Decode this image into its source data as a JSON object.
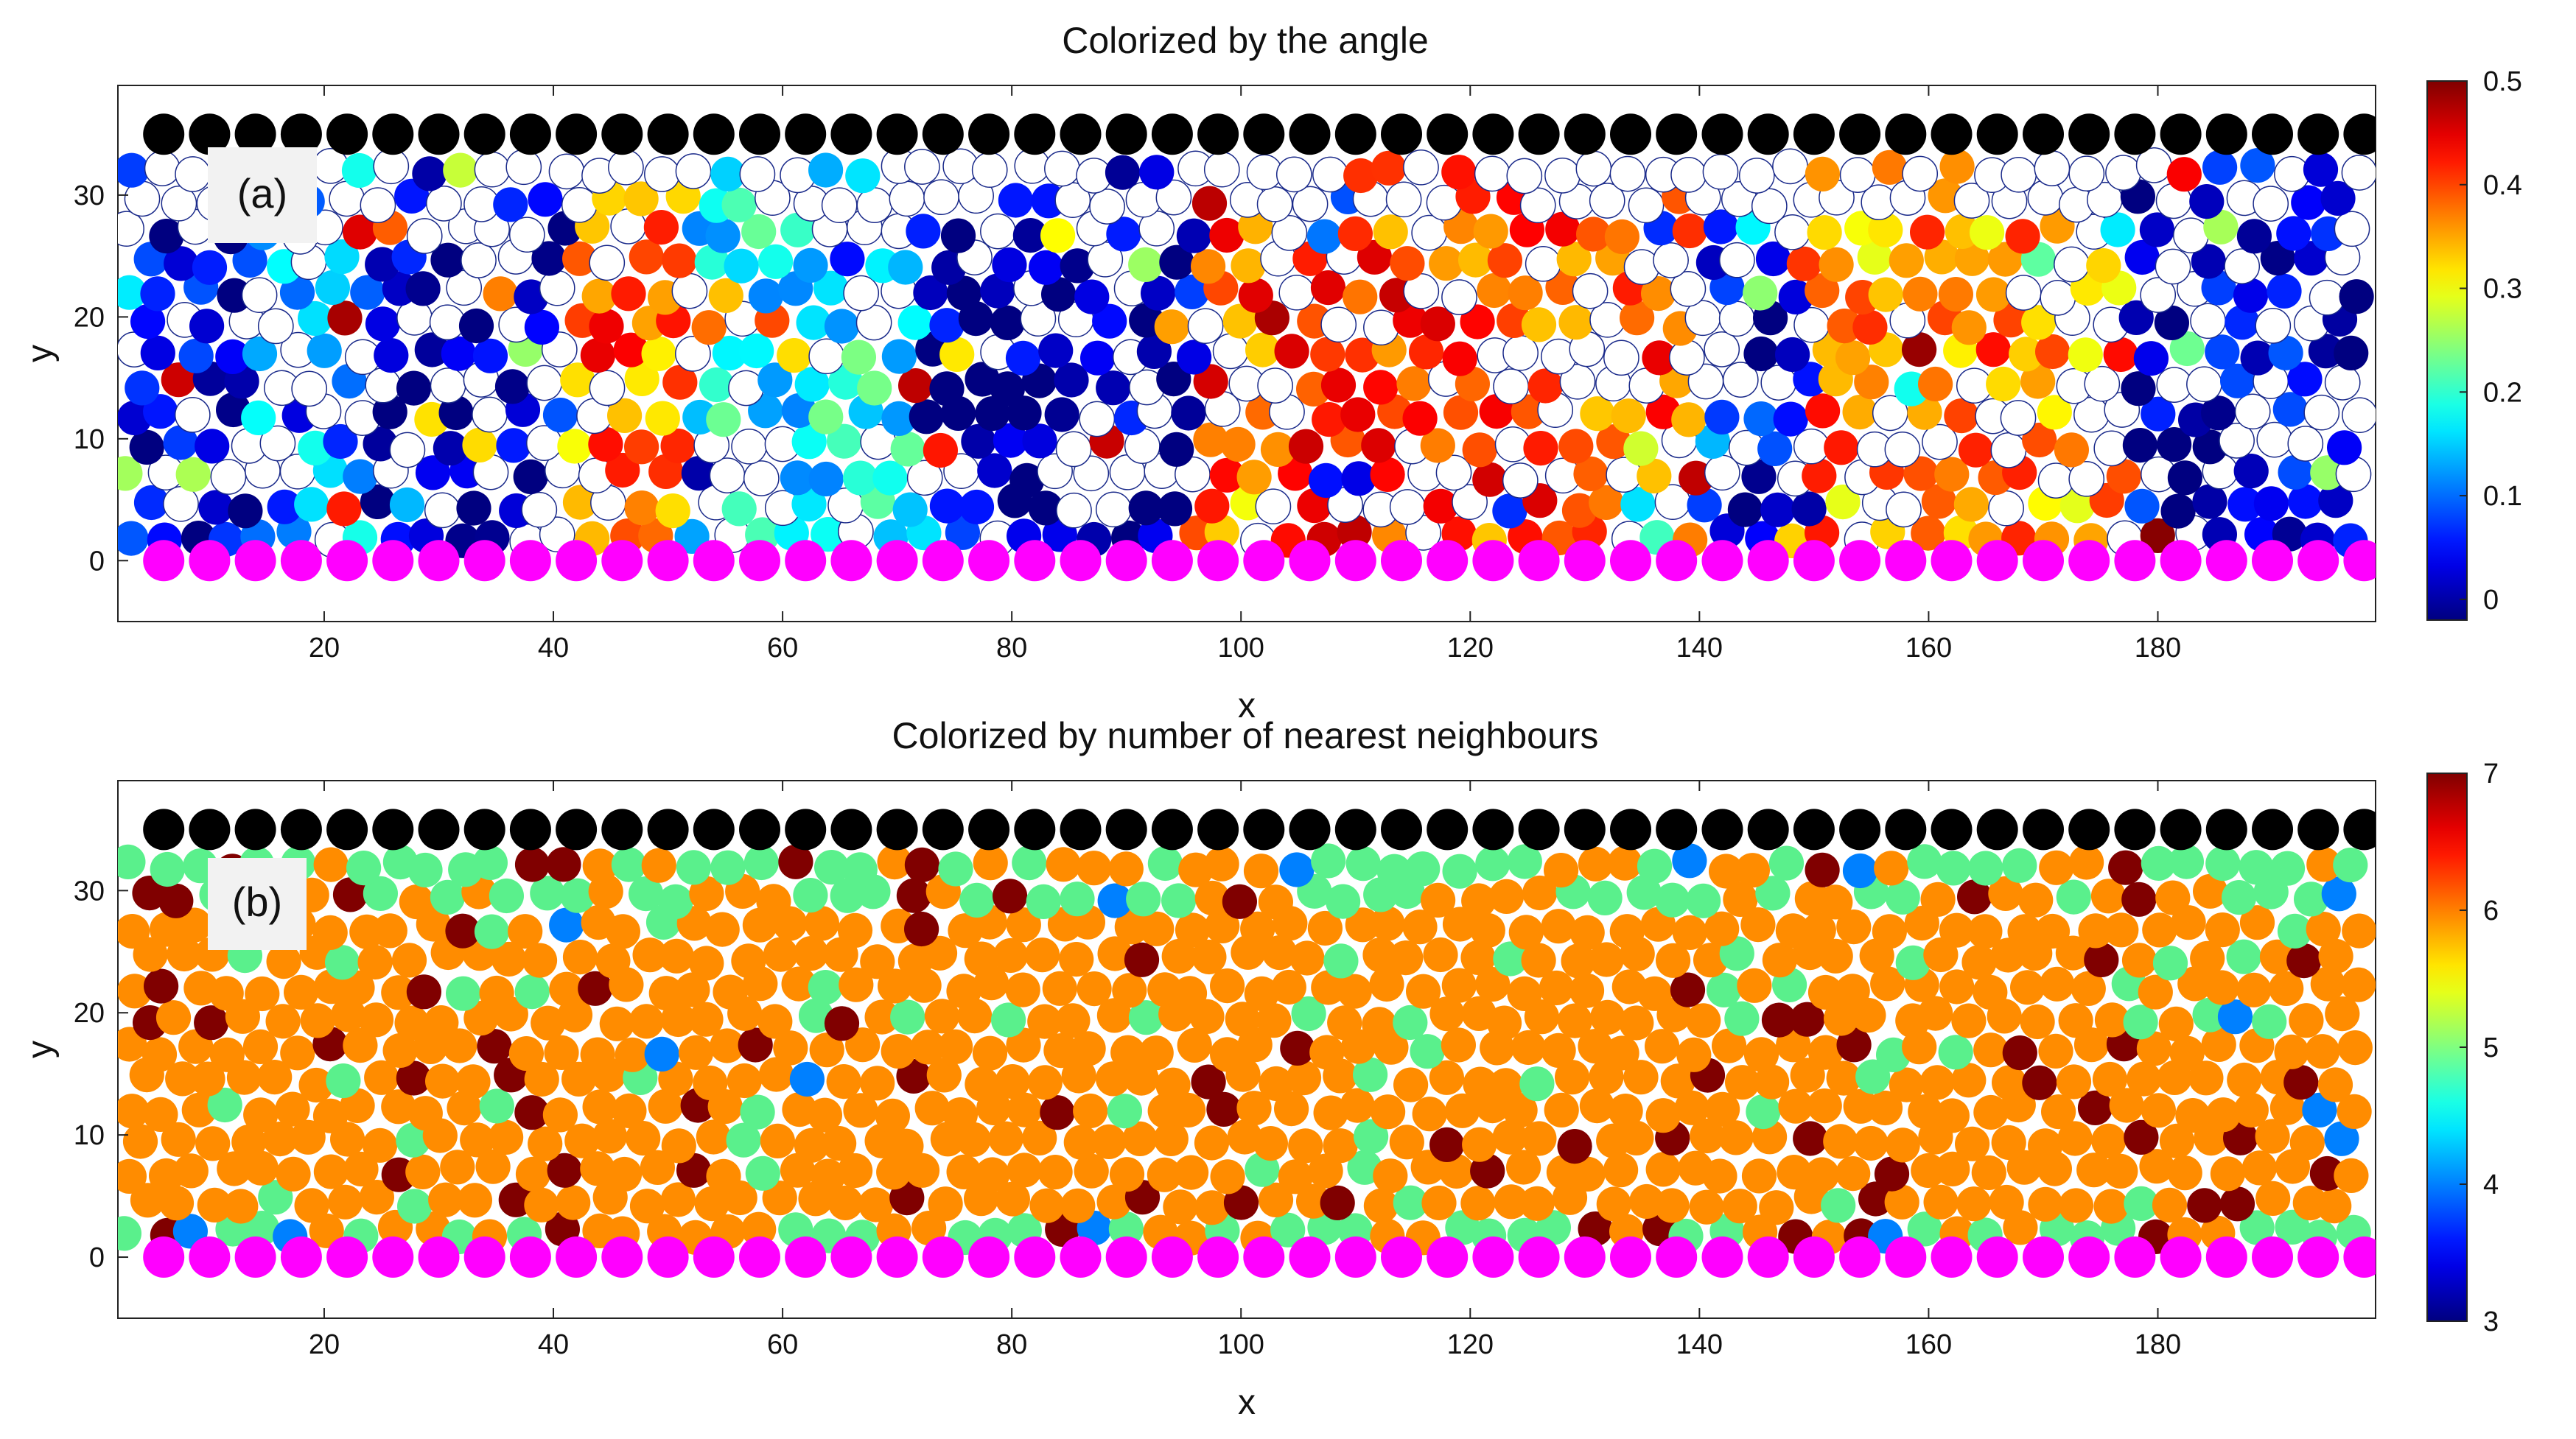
{
  "chart_data": [
    {
      "type": "scatter",
      "title": "Colorized by the angle",
      "panel_label": "(a)",
      "xlabel": "x",
      "ylabel": "y",
      "xlim": [
        2,
        199
      ],
      "ylim": [
        -5,
        39
      ],
      "xticks": [
        20,
        40,
        60,
        80,
        100,
        120,
        140,
        160,
        180
      ],
      "xtick_labels": [
        "20",
        "40",
        "60",
        "80",
        "100",
        "120",
        "140",
        "160",
        "180"
      ],
      "yticks": [
        0,
        10,
        20,
        30
      ],
      "ytick_labels": [
        "0",
        "10",
        "20",
        "30"
      ],
      "colorbar": {
        "range": [
          -0.02,
          0.5
        ],
        "ticks": [
          0,
          0.1,
          0.2,
          0.3,
          0.4,
          0.5
        ],
        "tick_labels": [
          "0",
          "0.1",
          "0.2",
          "0.3",
          "0.4",
          "0.5"
        ],
        "colormap": "jet"
      },
      "boundary_rows": [
        {
          "name": "top wall",
          "y": 35,
          "x_start": 6,
          "x_end": 198,
          "spacing": 4,
          "color": "#000000"
        },
        {
          "name": "bottom wall",
          "y": 0,
          "x_start": 6,
          "x_end": 198,
          "spacing": 4,
          "color": "#ff00ff"
        }
      ],
      "regions": [
        {
          "x": [
            3,
            14
          ],
          "y": [
            2,
            33
          ],
          "value": 0.02
        },
        {
          "x": [
            14,
            24
          ],
          "y": [
            4,
            28
          ],
          "value": 0.12
        },
        {
          "x": [
            24,
            42
          ],
          "y": [
            8,
            32
          ],
          "value": 0.0
        },
        {
          "x": [
            42,
            52
          ],
          "y": [
            3,
            26
          ],
          "value": 0.38
        },
        {
          "x": [
            52,
            72
          ],
          "y": [
            6,
            26
          ],
          "value": 0.17
        },
        {
          "x": [
            72,
            96
          ],
          "y": [
            5,
            30
          ],
          "value": 0.01
        },
        {
          "x": [
            96,
            140
          ],
          "y": [
            3,
            26
          ],
          "value": 0.4
        },
        {
          "x": [
            140,
            150
          ],
          "y": [
            3,
            30
          ],
          "value": 0.03
        },
        {
          "x": [
            150,
            178
          ],
          "y": [
            3,
            26
          ],
          "value": 0.36
        },
        {
          "x": [
            178,
            199
          ],
          "y": [
            4,
            30
          ],
          "value": 0.02
        }
      ],
      "empty_fraction": 0.3
    },
    {
      "type": "scatter",
      "title": "Colorized by number of nearest neighbours",
      "panel_label": "(b)",
      "xlabel": "x",
      "ylabel": "y",
      "xlim": [
        2,
        199
      ],
      "ylim": [
        -5,
        39
      ],
      "xticks": [
        20,
        40,
        60,
        80,
        100,
        120,
        140,
        160,
        180
      ],
      "xtick_labels": [
        "20",
        "40",
        "60",
        "80",
        "100",
        "120",
        "140",
        "160",
        "180"
      ],
      "yticks": [
        0,
        10,
        20,
        30
      ],
      "ytick_labels": [
        "0",
        "10",
        "20",
        "30"
      ],
      "colorbar": {
        "range": [
          3,
          7
        ],
        "ticks": [
          3,
          4,
          5,
          6,
          7
        ],
        "tick_labels": [
          "3",
          "4",
          "5",
          "6",
          "7"
        ],
        "colormap": "jet"
      },
      "boundary_rows": [
        {
          "name": "top wall",
          "y": 35,
          "x_start": 6,
          "x_end": 198,
          "spacing": 4,
          "color": "#000000"
        },
        {
          "name": "bottom wall",
          "y": 0,
          "x_start": 6,
          "x_end": 198,
          "spacing": 4,
          "color": "#ff00ff"
        }
      ],
      "dominant_value": 6,
      "value_fractions": {
        "4": 0.01,
        "5": 0.06,
        "6": 0.87,
        "7": 0.06
      }
    }
  ]
}
